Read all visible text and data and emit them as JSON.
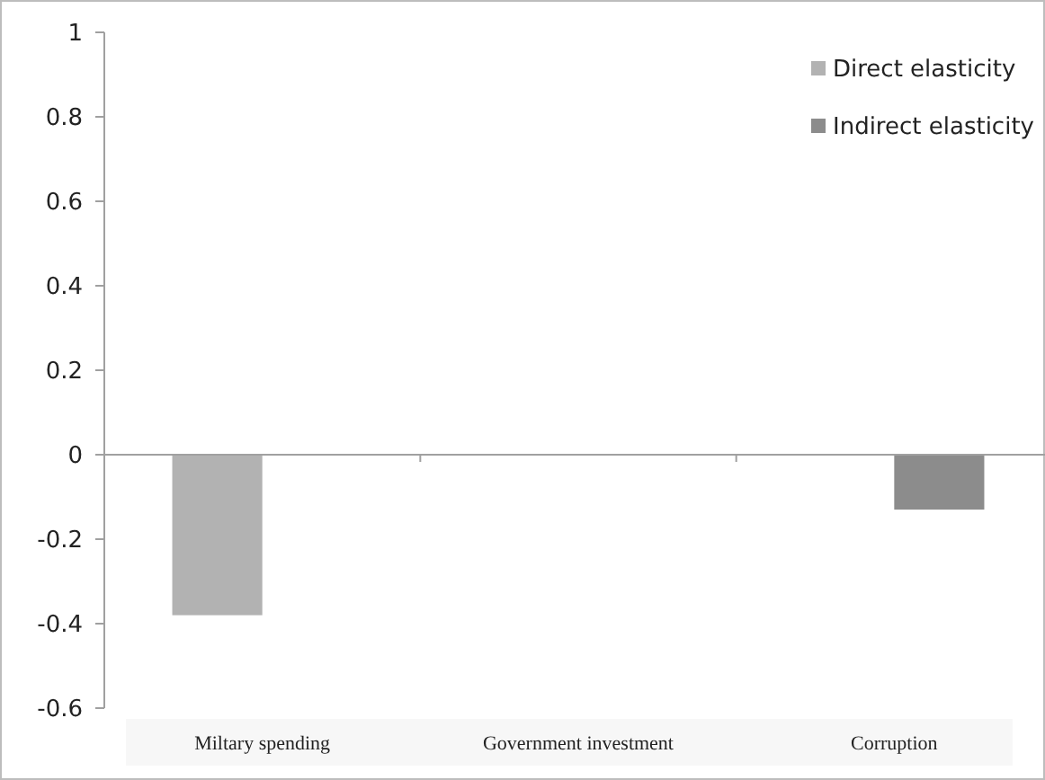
{
  "chart_data": {
    "type": "bar",
    "categories": [
      "Miltary spending",
      "Government investment",
      "Corruption"
    ],
    "series": [
      {
        "name": "Direct elasticity",
        "color": "#b2b2b2",
        "values": [
          -0.38,
          null,
          null
        ]
      },
      {
        "name": "Indirect elasticity",
        "color": "#8c8c8c",
        "values": [
          null,
          null,
          -0.13
        ]
      }
    ],
    "ylim": [
      -0.6,
      1
    ],
    "yticks": [
      1,
      0.8,
      0.6,
      0.4,
      0.2,
      0,
      -0.2,
      -0.4,
      -0.6
    ],
    "legend": "top right"
  }
}
